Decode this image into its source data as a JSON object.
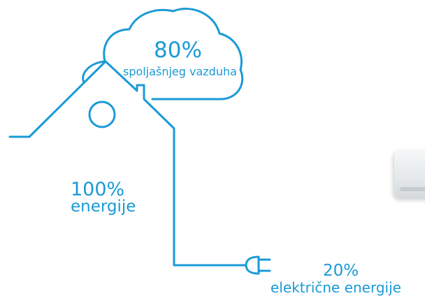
{
  "accent_color": "#1a9ad6",
  "outdoor": {
    "percent": "80%",
    "label": "spoljašnjeg vazduha"
  },
  "total": {
    "percent": "100%",
    "label": "energije"
  },
  "electric": {
    "percent": "20%",
    "label": "električne energije"
  },
  "icons": {
    "house": "house-outline-icon",
    "cloud": "cloud-outline-icon",
    "plug": "power-plug-icon",
    "ac_unit": "air-conditioner-unit"
  }
}
